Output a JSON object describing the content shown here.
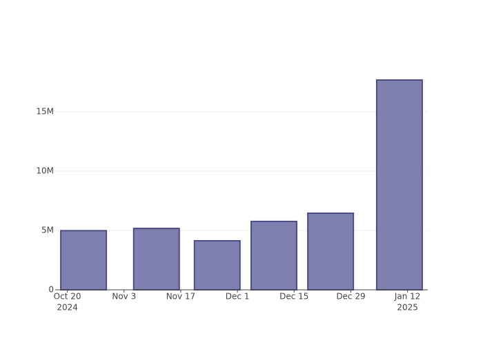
{
  "chart_data": {
    "type": "bar",
    "x": [
      "2024-10-24",
      "2024-11-11",
      "2024-11-26",
      "2024-12-10",
      "2024-12-24",
      "2025-01-10"
    ],
    "values": [
      4980000,
      5170000,
      4130000,
      5760000,
      6450000,
      17670000
    ],
    "color": "#7f7fb0",
    "edge_color": "#4b4b88",
    "xlim": [
      "2024-10-17",
      "2025-01-17"
    ],
    "xticks": [
      {
        "value": "2024-10-20",
        "label": "Oct 20",
        "sublabel": "2024"
      },
      {
        "value": "2024-11-03",
        "label": "Nov 3"
      },
      {
        "value": "2024-11-17",
        "label": "Nov 17"
      },
      {
        "value": "2024-12-01",
        "label": "Dec 1"
      },
      {
        "value": "2024-12-15",
        "label": "Dec 15"
      },
      {
        "value": "2024-12-29",
        "label": "Dec 29"
      },
      {
        "value": "2025-01-12",
        "label": "Jan 12",
        "sublabel": "2025"
      }
    ],
    "ylim": [
      0,
      18600000
    ],
    "yticks": [
      0,
      {
        "value": 5000000,
        "label": "5M"
      },
      {
        "value": 10000000,
        "label": "10M"
      },
      {
        "value": 15000000,
        "label": "15M"
      }
    ],
    "grid": true
  }
}
